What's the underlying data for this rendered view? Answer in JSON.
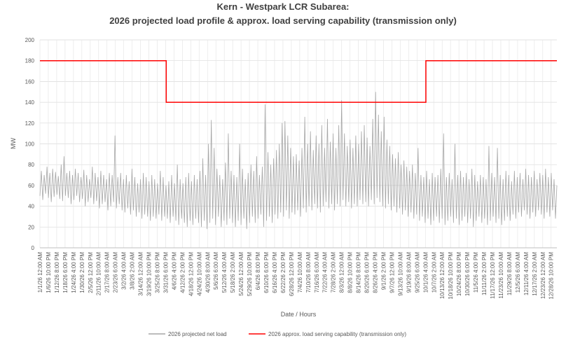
{
  "chart_data": {
    "type": "line",
    "title": "Kern - Westpark LCR Subarea:",
    "subtitle": "2026 projected load profile & approx. load serving capability (transmission only)",
    "x_label": "Date / Hours",
    "y_label": "MW",
    "xlim": [
      0,
      8760
    ],
    "ylim": [
      0,
      200
    ],
    "yticks": [
      0,
      20,
      40,
      60,
      80,
      100,
      120,
      140,
      160,
      180,
      200
    ],
    "grid": true,
    "legend": "bottom",
    "xticks": [
      {
        "value": 0,
        "label": "1/1/26 12:00 AM"
      },
      {
        "value": 142,
        "label": "1/6/26 10:00 PM"
      },
      {
        "value": 284,
        "label": "1/12/26 8:00 PM"
      },
      {
        "value": 426,
        "label": "1/18/26 6:00 PM"
      },
      {
        "value": 568,
        "label": "1/24/26 4:00 PM"
      },
      {
        "value": 710,
        "label": "1/30/26 2:00 PM"
      },
      {
        "value": 852,
        "label": "2/5/26 12:00 PM"
      },
      {
        "value": 994,
        "label": "2/11/26 10:00 AM"
      },
      {
        "value": 1136,
        "label": "2/17/26 8:00 AM"
      },
      {
        "value": 1278,
        "label": "2/23/26 6:00 AM"
      },
      {
        "value": 1420,
        "label": "3/2/26 4:00 AM"
      },
      {
        "value": 1562,
        "label": "3/8/26 2:00 AM"
      },
      {
        "value": 1704,
        "label": "3/14/26 12:00 AM"
      },
      {
        "value": 1846,
        "label": "3/19/26 10:00 PM"
      },
      {
        "value": 1988,
        "label": "3/25/26 8:00 PM"
      },
      {
        "value": 2130,
        "label": "3/31/26 6:00 PM"
      },
      {
        "value": 2272,
        "label": "4/6/26 4:00 PM"
      },
      {
        "value": 2414,
        "label": "4/12/26 2:00 PM"
      },
      {
        "value": 2556,
        "label": "4/18/26 12:00 PM"
      },
      {
        "value": 2698,
        "label": "4/24/26 10:00 AM"
      },
      {
        "value": 2840,
        "label": "4/30/26 8:00 AM"
      },
      {
        "value": 2982,
        "label": "5/6/26 6:00 AM"
      },
      {
        "value": 3124,
        "label": "5/12/26 4:00 AM"
      },
      {
        "value": 3266,
        "label": "5/18/26 2:00 AM"
      },
      {
        "value": 3408,
        "label": "5/24/26 12:00 AM"
      },
      {
        "value": 3550,
        "label": "5/29/26 10:00 PM"
      },
      {
        "value": 3692,
        "label": "6/4/26 8:00 PM"
      },
      {
        "value": 3834,
        "label": "6/10/26 6:00 PM"
      },
      {
        "value": 3976,
        "label": "6/16/26 4:00 PM"
      },
      {
        "value": 4118,
        "label": "6/22/26 2:00 PM"
      },
      {
        "value": 4260,
        "label": "6/28/26 12:00 PM"
      },
      {
        "value": 4402,
        "label": "7/4/26 10:00 AM"
      },
      {
        "value": 4544,
        "label": "7/10/26 8:00 AM"
      },
      {
        "value": 4686,
        "label": "7/16/26 6:00 AM"
      },
      {
        "value": 4828,
        "label": "7/22/26 4:00 AM"
      },
      {
        "value": 4970,
        "label": "7/28/26 2:00 AM"
      },
      {
        "value": 5112,
        "label": "8/3/26 12:00 AM"
      },
      {
        "value": 5254,
        "label": "8/8/26 10:00 PM"
      },
      {
        "value": 5396,
        "label": "8/14/26 8:00 PM"
      },
      {
        "value": 5538,
        "label": "8/20/26 6:00 PM"
      },
      {
        "value": 5680,
        "label": "8/26/26 4:00 PM"
      },
      {
        "value": 5822,
        "label": "9/1/26 2:00 PM"
      },
      {
        "value": 5964,
        "label": "9/7/26 12:00 PM"
      },
      {
        "value": 6106,
        "label": "9/13/26 10:00 AM"
      },
      {
        "value": 6248,
        "label": "9/19/26 8:00 AM"
      },
      {
        "value": 6390,
        "label": "9/25/26 6:00 AM"
      },
      {
        "value": 6532,
        "label": "10/1/26 4:00 AM"
      },
      {
        "value": 6674,
        "label": "10/7/26 2:00 AM"
      },
      {
        "value": 6816,
        "label": "10/13/26 12:00 AM"
      },
      {
        "value": 6958,
        "label": "10/18/26 10:00 PM"
      },
      {
        "value": 7100,
        "label": "10/24/26 8:00 PM"
      },
      {
        "value": 7242,
        "label": "10/30/26 6:00 PM"
      },
      {
        "value": 7384,
        "label": "11/5/26 4:00 PM"
      },
      {
        "value": 7526,
        "label": "11/11/26 2:00 PM"
      },
      {
        "value": 7668,
        "label": "11/17/26 12:00 PM"
      },
      {
        "value": 7810,
        "label": "11/23/26 10:00 AM"
      },
      {
        "value": 7952,
        "label": "11/29/26 8:00 AM"
      },
      {
        "value": 8094,
        "label": "12/5/26 6:00 AM"
      },
      {
        "value": 8236,
        "label": "12/11/26 4:00 AM"
      },
      {
        "value": 8378,
        "label": "12/17/26 2:00 AM"
      },
      {
        "value": 8520,
        "label": "12/23/26 12:00 AM"
      },
      {
        "value": 8662,
        "label": "12/28/26 10:00 PM"
      }
    ],
    "series": [
      {
        "name": "2026 projected net load",
        "color": "#a6a6a6",
        "x": [
          0,
          24,
          48,
          72,
          96,
          120,
          144,
          168,
          192,
          216,
          240,
          264,
          288,
          312,
          336,
          360,
          384,
          408,
          432,
          456,
          480,
          504,
          528,
          552,
          576,
          600,
          624,
          648,
          672,
          696,
          720,
          744,
          768,
          792,
          816,
          840,
          864,
          888,
          912,
          936,
          960,
          984,
          1008,
          1032,
          1056,
          1080,
          1104,
          1128,
          1152,
          1176,
          1200,
          1224,
          1248,
          1272,
          1296,
          1320,
          1344,
          1368,
          1392,
          1416,
          1440,
          1464,
          1488,
          1512,
          1536,
          1560,
          1584,
          1608,
          1632,
          1656,
          1680,
          1704,
          1728,
          1752,
          1776,
          1800,
          1824,
          1848,
          1872,
          1896,
          1920,
          1944,
          1968,
          1992,
          2016,
          2040,
          2064,
          2088,
          2112,
          2136,
          2160,
          2184,
          2208,
          2232,
          2256,
          2280,
          2304,
          2328,
          2352,
          2376,
          2400,
          2424,
          2448,
          2472,
          2496,
          2520,
          2544,
          2568,
          2592,
          2616,
          2640,
          2664,
          2688,
          2712,
          2736,
          2760,
          2784,
          2808,
          2832,
          2856,
          2880,
          2904,
          2928,
          2952,
          2976,
          3000,
          3024,
          3048,
          3072,
          3096,
          3120,
          3144,
          3168,
          3192,
          3216,
          3240,
          3264,
          3288,
          3312,
          3336,
          3360,
          3384,
          3408,
          3432,
          3456,
          3480,
          3504,
          3528,
          3552,
          3576,
          3600,
          3624,
          3648,
          3672,
          3696,
          3720,
          3744,
          3768,
          3792,
          3816,
          3840,
          3864,
          3888,
          3912,
          3936,
          3960,
          3984,
          4008,
          4032,
          4056,
          4080,
          4104,
          4128,
          4152,
          4176,
          4200,
          4224,
          4248,
          4272,
          4296,
          4320,
          4344,
          4368,
          4392,
          4416,
          4440,
          4464,
          4488,
          4512,
          4536,
          4560,
          4584,
          4608,
          4632,
          4656,
          4680,
          4704,
          4728,
          4752,
          4776,
          4800,
          4824,
          4848,
          4872,
          4896,
          4920,
          4944,
          4968,
          4992,
          5016,
          5040,
          5064,
          5088,
          5112,
          5136,
          5160,
          5184,
          5208,
          5232,
          5256,
          5280,
          5304,
          5328,
          5352,
          5376,
          5400,
          5424,
          5448,
          5472,
          5496,
          5520,
          5544,
          5568,
          5592,
          5616,
          5640,
          5664,
          5688,
          5712,
          5736,
          5760,
          5784,
          5808,
          5832,
          5856,
          5880,
          5904,
          5928,
          5952,
          5976,
          6000,
          6024,
          6048,
          6072,
          6096,
          6120,
          6144,
          6168,
          6192,
          6216,
          6240,
          6264,
          6288,
          6312,
          6336,
          6360,
          6384,
          6408,
          6432,
          6456,
          6480,
          6504,
          6528,
          6552,
          6576,
          6600,
          6624,
          6648,
          6672,
          6696,
          6720,
          6744,
          6768,
          6792,
          6816,
          6840,
          6864,
          6888,
          6912,
          6936,
          6960,
          6984,
          7008,
          7032,
          7056,
          7080,
          7104,
          7128,
          7152,
          7176,
          7200,
          7224,
          7248,
          7272,
          7296,
          7320,
          7344,
          7368,
          7392,
          7416,
          7440,
          7464,
          7488,
          7512,
          7536,
          7560,
          7584,
          7608,
          7632,
          7656,
          7680,
          7704,
          7728,
          7752,
          7776,
          7800,
          7824,
          7848,
          7872,
          7896,
          7920,
          7944,
          7968,
          7992,
          8016,
          8040,
          8064,
          8088,
          8112,
          8136,
          8160,
          8184,
          8208,
          8232,
          8256,
          8280,
          8304,
          8328,
          8352,
          8376,
          8400,
          8424,
          8448,
          8472,
          8496,
          8520,
          8544,
          8568,
          8592,
          8616,
          8640,
          8664,
          8688,
          8712,
          8736,
          8760
        ],
        "values": [
          50,
          74,
          46,
          70,
          52,
          78,
          48,
          72,
          44,
          76,
          49,
          73,
          51,
          69,
          47,
          80,
          45,
          88,
          50,
          72,
          48,
          74,
          42,
          70,
          46,
          76,
          50,
          72,
          44,
          68,
          47,
          75,
          40,
          70,
          44,
          66,
          48,
          78,
          42,
          72,
          45,
          68,
          38,
          74,
          42,
          70,
          44,
          66,
          36,
          72,
          40,
          70,
          44,
          108,
          38,
          68,
          42,
          72,
          36,
          66,
          34,
          70,
          38,
          64,
          32,
          76,
          36,
          68,
          30,
          62,
          34,
          66,
          28,
          72,
          32,
          68,
          30,
          64,
          26,
          70,
          30,
          66,
          28,
          62,
          32,
          74,
          26,
          68,
          30,
          60,
          28,
          64,
          24,
          70,
          30,
          62,
          26,
          80,
          22,
          66,
          28,
          62,
          24,
          68,
          20,
          72,
          26,
          64,
          22,
          70,
          28,
          66,
          24,
          74,
          20,
          86,
          26,
          70,
          18,
          100,
          24,
          123,
          28,
          96,
          22,
          76,
          30,
          70,
          20,
          66,
          26,
          82,
          22,
          110,
          28,
          74,
          24,
          70,
          20,
          68,
          26,
          100,
          22,
          76,
          28,
          66,
          18,
          72,
          24,
          80,
          30,
          74,
          24,
          88,
          28,
          70,
          32,
          78,
          20,
          138,
          26,
          92,
          30,
          80,
          24,
          86,
          32,
          94,
          28,
          100,
          34,
          120,
          30,
          122,
          36,
          108,
          28,
          96,
          34,
          88,
          32,
          90,
          36,
          84,
          30,
          96,
          38,
          126,
          34,
          100,
          40,
          112,
          36,
          94,
          42,
          108,
          38,
          100,
          34,
          118,
          40,
          96,
          44,
          124,
          38,
          102,
          42,
          110,
          36,
          96,
          42,
          118,
          40,
          142,
          46,
          110,
          40,
          98,
          44,
          104,
          38,
          96,
          42,
          108,
          40,
          100,
          46,
          112,
          42,
          118,
          44,
          106,
          40,
          98,
          46,
          124,
          42,
          150,
          48,
          128,
          44,
          112,
          40,
          126,
          38,
          104,
          42,
          98,
          36,
          90,
          40,
          86,
          34,
          92,
          38,
          80,
          32,
          84,
          36,
          78,
          30,
          74,
          34,
          80,
          28,
          72,
          32,
          96,
          26,
          70,
          30,
          68,
          24,
          74,
          28,
          66,
          22,
          72,
          26,
          68,
          30,
          70,
          24,
          76,
          28,
          110,
          22,
          68,
          26,
          72,
          30,
          66,
          24,
          100,
          28,
          70,
          22,
          74,
          26,
          68,
          30,
          72,
          24,
          66,
          28,
          76,
          20,
          70,
          26,
          64,
          30,
          70,
          24,
          68,
          28,
          66,
          22,
          98,
          26,
          72,
          30,
          68,
          24,
          96,
          28,
          70,
          22,
          66,
          26,
          74,
          30,
          70,
          26,
          64,
          32,
          74,
          28,
          68,
          34,
          72,
          30,
          66,
          36,
          76,
          32,
          70,
          28,
          68,
          34,
          74,
          30,
          66,
          36,
          72,
          32,
          70,
          28,
          76,
          34,
          68,
          30,
          72,
          36,
          66,
          28,
          60
        ]
      },
      {
        "name": "2026 approx. load serving capability (transmission only)",
        "color": "#ff0000",
        "x": [
          0,
          2140,
          2140,
          6540,
          6540,
          8760
        ],
        "values": [
          180,
          180,
          140,
          140,
          180,
          180
        ]
      }
    ]
  }
}
